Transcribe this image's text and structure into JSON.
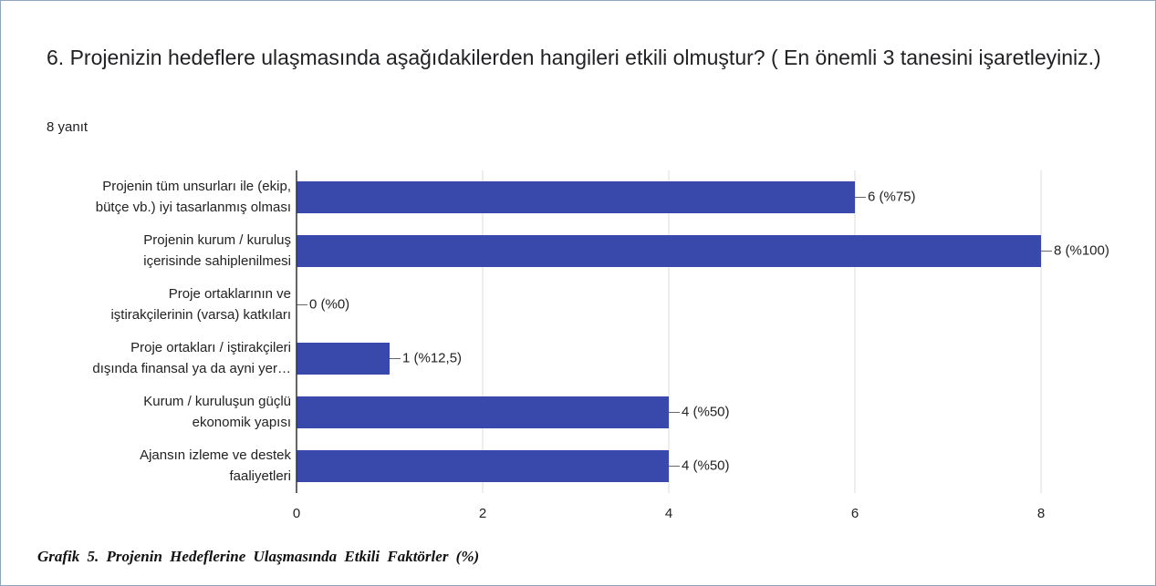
{
  "chart_data": {
    "type": "barh",
    "title": "6. Projenizin hedeflere ulaşmasında aşağıdakilerden hangileri etkili olmuştur? ( En önemli 3 tanesini işaretleyiniz.)",
    "subtitle": "8 yanıt",
    "caption": "Grafik 5. Projenin Hedeflerine Ulaşmasında Etkili Faktörler (%)",
    "categories": [
      [
        "Projenin tüm unsurları ile (ekip,",
        "bütçe vb.) iyi tasarlanmış olması"
      ],
      [
        "Projenin kurum / kuruluş",
        "içerisinde sahiplenilmesi"
      ],
      [
        "Proje ortaklarının ve",
        "iştirakçilerinin (varsa) katkıları"
      ],
      [
        "Proje ortakları / iştirakçileri",
        "dışında finansal ya da ayni yer…"
      ],
      [
        "Kurum / kuruluşun güçlü",
        "ekonomik yapısı"
      ],
      [
        "Ajansın izleme ve destek",
        "faaliyetleri"
      ]
    ],
    "values": [
      6,
      8,
      0,
      1,
      4,
      4
    ],
    "value_labels": [
      "6 (%75)",
      "8 (%100)",
      "0 (%0)",
      "1 (%12,5)",
      "4 (%50)",
      "4 (%50)"
    ],
    "color": "#3949ab",
    "xlim": [
      0,
      8
    ],
    "xticks": [
      0,
      2,
      4,
      6,
      8
    ],
    "grid": true
  }
}
